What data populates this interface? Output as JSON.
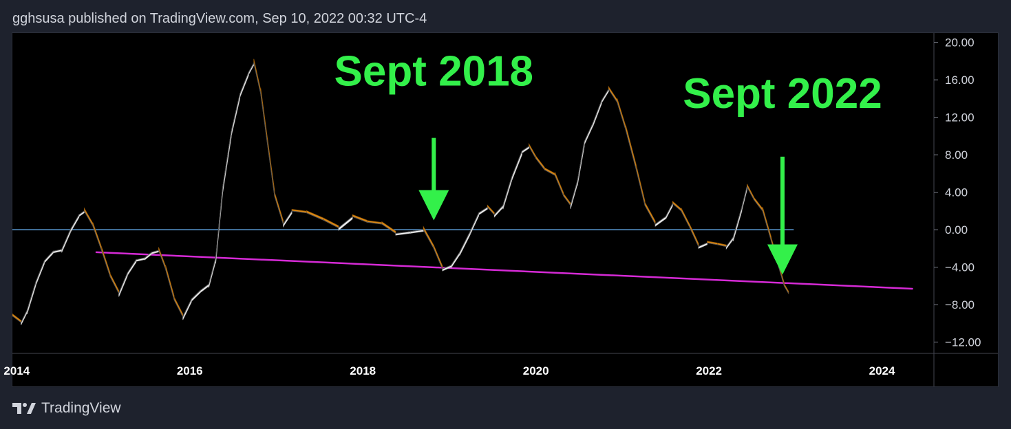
{
  "header": {
    "publisher_line": "gghsusa published on TradingView.com, Sep 10, 2022 00:32 UTC-4"
  },
  "footer": {
    "brand": "TradingView",
    "logo_icon": "tradingview-logo-icon"
  },
  "colors": {
    "background": "#1e222d",
    "plot_background": "#000000",
    "rising_fill": "#f2f2f2",
    "falling_fill": "#e08a12",
    "zero_line": "#5b9bd5",
    "trend_line": "#d62ad6",
    "annotation": "#33f04a",
    "axis_text": "#d1d4dc"
  },
  "chart_data": {
    "type": "area",
    "title": "",
    "xlabel": "",
    "ylabel": "",
    "xlim": [
      2013.95,
      2024.6
    ],
    "ylim": [
      -13.2,
      21.0
    ],
    "x_ticks": [
      {
        "value": 2014,
        "label": "2014"
      },
      {
        "value": 2016,
        "label": "2016"
      },
      {
        "value": 2018,
        "label": "2018"
      },
      {
        "value": 2020,
        "label": "2020"
      },
      {
        "value": 2022,
        "label": "2022"
      },
      {
        "value": 2024,
        "label": "2024"
      }
    ],
    "y_ticks": [
      {
        "value": 20,
        "label": "20.00"
      },
      {
        "value": 16,
        "label": "16.00"
      },
      {
        "value": 12,
        "label": "12.00"
      },
      {
        "value": 8,
        "label": "8.00"
      },
      {
        "value": 4,
        "label": "4.00"
      },
      {
        "value": 0,
        "label": "0.00"
      },
      {
        "value": -4,
        "label": "−4.00"
      },
      {
        "value": -8,
        "label": "−8.00"
      },
      {
        "value": -12,
        "label": "−12.00"
      }
    ],
    "grid": false,
    "series": [
      {
        "values": [
          [
            2013.95,
            -9.2
          ],
          [
            2014.05,
            -9.9
          ],
          [
            2014.12,
            -8.6
          ],
          [
            2014.22,
            -5.6
          ],
          [
            2014.32,
            -3.3
          ],
          [
            2014.42,
            -2.3
          ],
          [
            2014.52,
            -2.1
          ],
          [
            2014.62,
            0.0
          ],
          [
            2014.72,
            1.6
          ],
          [
            2014.78,
            2.0
          ],
          [
            2014.88,
            0.4
          ],
          [
            2014.98,
            -2.2
          ],
          [
            2015.08,
            -5.0
          ],
          [
            2015.18,
            -6.8
          ],
          [
            2015.28,
            -4.6
          ],
          [
            2015.38,
            -3.2
          ],
          [
            2015.48,
            -3.0
          ],
          [
            2015.56,
            -2.4
          ],
          [
            2015.64,
            -2.2
          ],
          [
            2015.72,
            -4.2
          ],
          [
            2015.82,
            -7.5
          ],
          [
            2015.92,
            -9.3
          ],
          [
            2016.02,
            -7.4
          ],
          [
            2016.12,
            -6.5
          ],
          [
            2016.22,
            -5.8
          ],
          [
            2016.3,
            -3.0
          ],
          [
            2016.38,
            4.5
          ],
          [
            2016.48,
            10.5
          ],
          [
            2016.58,
            14.5
          ],
          [
            2016.68,
            16.8
          ],
          [
            2016.74,
            17.8
          ],
          [
            2016.82,
            14.5
          ],
          [
            2016.9,
            9.0
          ],
          [
            2016.98,
            3.6
          ],
          [
            2017.08,
            0.6
          ],
          [
            2017.18,
            2.0
          ],
          [
            2017.35,
            1.8
          ],
          [
            2017.55,
            1.0
          ],
          [
            2017.72,
            0.2
          ],
          [
            2017.88,
            1.4
          ],
          [
            2018.05,
            0.8
          ],
          [
            2018.22,
            0.6
          ],
          [
            2018.38,
            -0.4
          ],
          [
            2018.55,
            -0.2
          ],
          [
            2018.7,
            0.0
          ],
          [
            2018.82,
            -2.0
          ],
          [
            2018.92,
            -4.2
          ],
          [
            2019.02,
            -3.8
          ],
          [
            2019.12,
            -2.4
          ],
          [
            2019.24,
            -0.2
          ],
          [
            2019.34,
            1.8
          ],
          [
            2019.44,
            2.4
          ],
          [
            2019.52,
            1.6
          ],
          [
            2019.62,
            2.6
          ],
          [
            2019.72,
            5.6
          ],
          [
            2019.84,
            8.4
          ],
          [
            2019.92,
            8.9
          ],
          [
            2020.0,
            7.6
          ],
          [
            2020.1,
            6.4
          ],
          [
            2020.22,
            5.8
          ],
          [
            2020.32,
            3.6
          ],
          [
            2020.4,
            2.6
          ],
          [
            2020.48,
            5.2
          ],
          [
            2020.56,
            9.4
          ],
          [
            2020.66,
            11.4
          ],
          [
            2020.76,
            13.8
          ],
          [
            2020.84,
            15.0
          ],
          [
            2020.94,
            13.6
          ],
          [
            2021.04,
            10.6
          ],
          [
            2021.16,
            6.4
          ],
          [
            2021.26,
            2.6
          ],
          [
            2021.38,
            0.6
          ],
          [
            2021.5,
            1.4
          ],
          [
            2021.58,
            2.8
          ],
          [
            2021.68,
            2.0
          ],
          [
            2021.78,
            0.2
          ],
          [
            2021.88,
            -1.8
          ],
          [
            2021.98,
            -1.4
          ],
          [
            2022.1,
            -1.6
          ],
          [
            2022.2,
            -1.8
          ],
          [
            2022.28,
            -0.8
          ],
          [
            2022.38,
            2.4
          ],
          [
            2022.44,
            4.6
          ],
          [
            2022.52,
            3.2
          ],
          [
            2022.62,
            2.0
          ],
          [
            2022.72,
            -1.2
          ],
          [
            2022.8,
            -3.8
          ],
          [
            2022.87,
            -6.0
          ],
          [
            2022.92,
            -6.8
          ]
        ]
      }
    ],
    "reference_lines": [
      {
        "kind": "horizontal",
        "y": 0.0
      },
      {
        "kind": "trend",
        "from": [
          2014.92,
          -2.4
        ],
        "to": [
          2024.35,
          -6.3
        ]
      }
    ],
    "annotations": [
      {
        "text": "Sept 2018",
        "x": 2018.82,
        "y": 15.4,
        "arrow_from_y": 9.8,
        "arrow_to_y": 1.0
      },
      {
        "text": "Sept 2022",
        "x": 2022.85,
        "y": 13.0,
        "arrow_from_y": 7.8,
        "arrow_to_y": -4.8
      }
    ]
  }
}
